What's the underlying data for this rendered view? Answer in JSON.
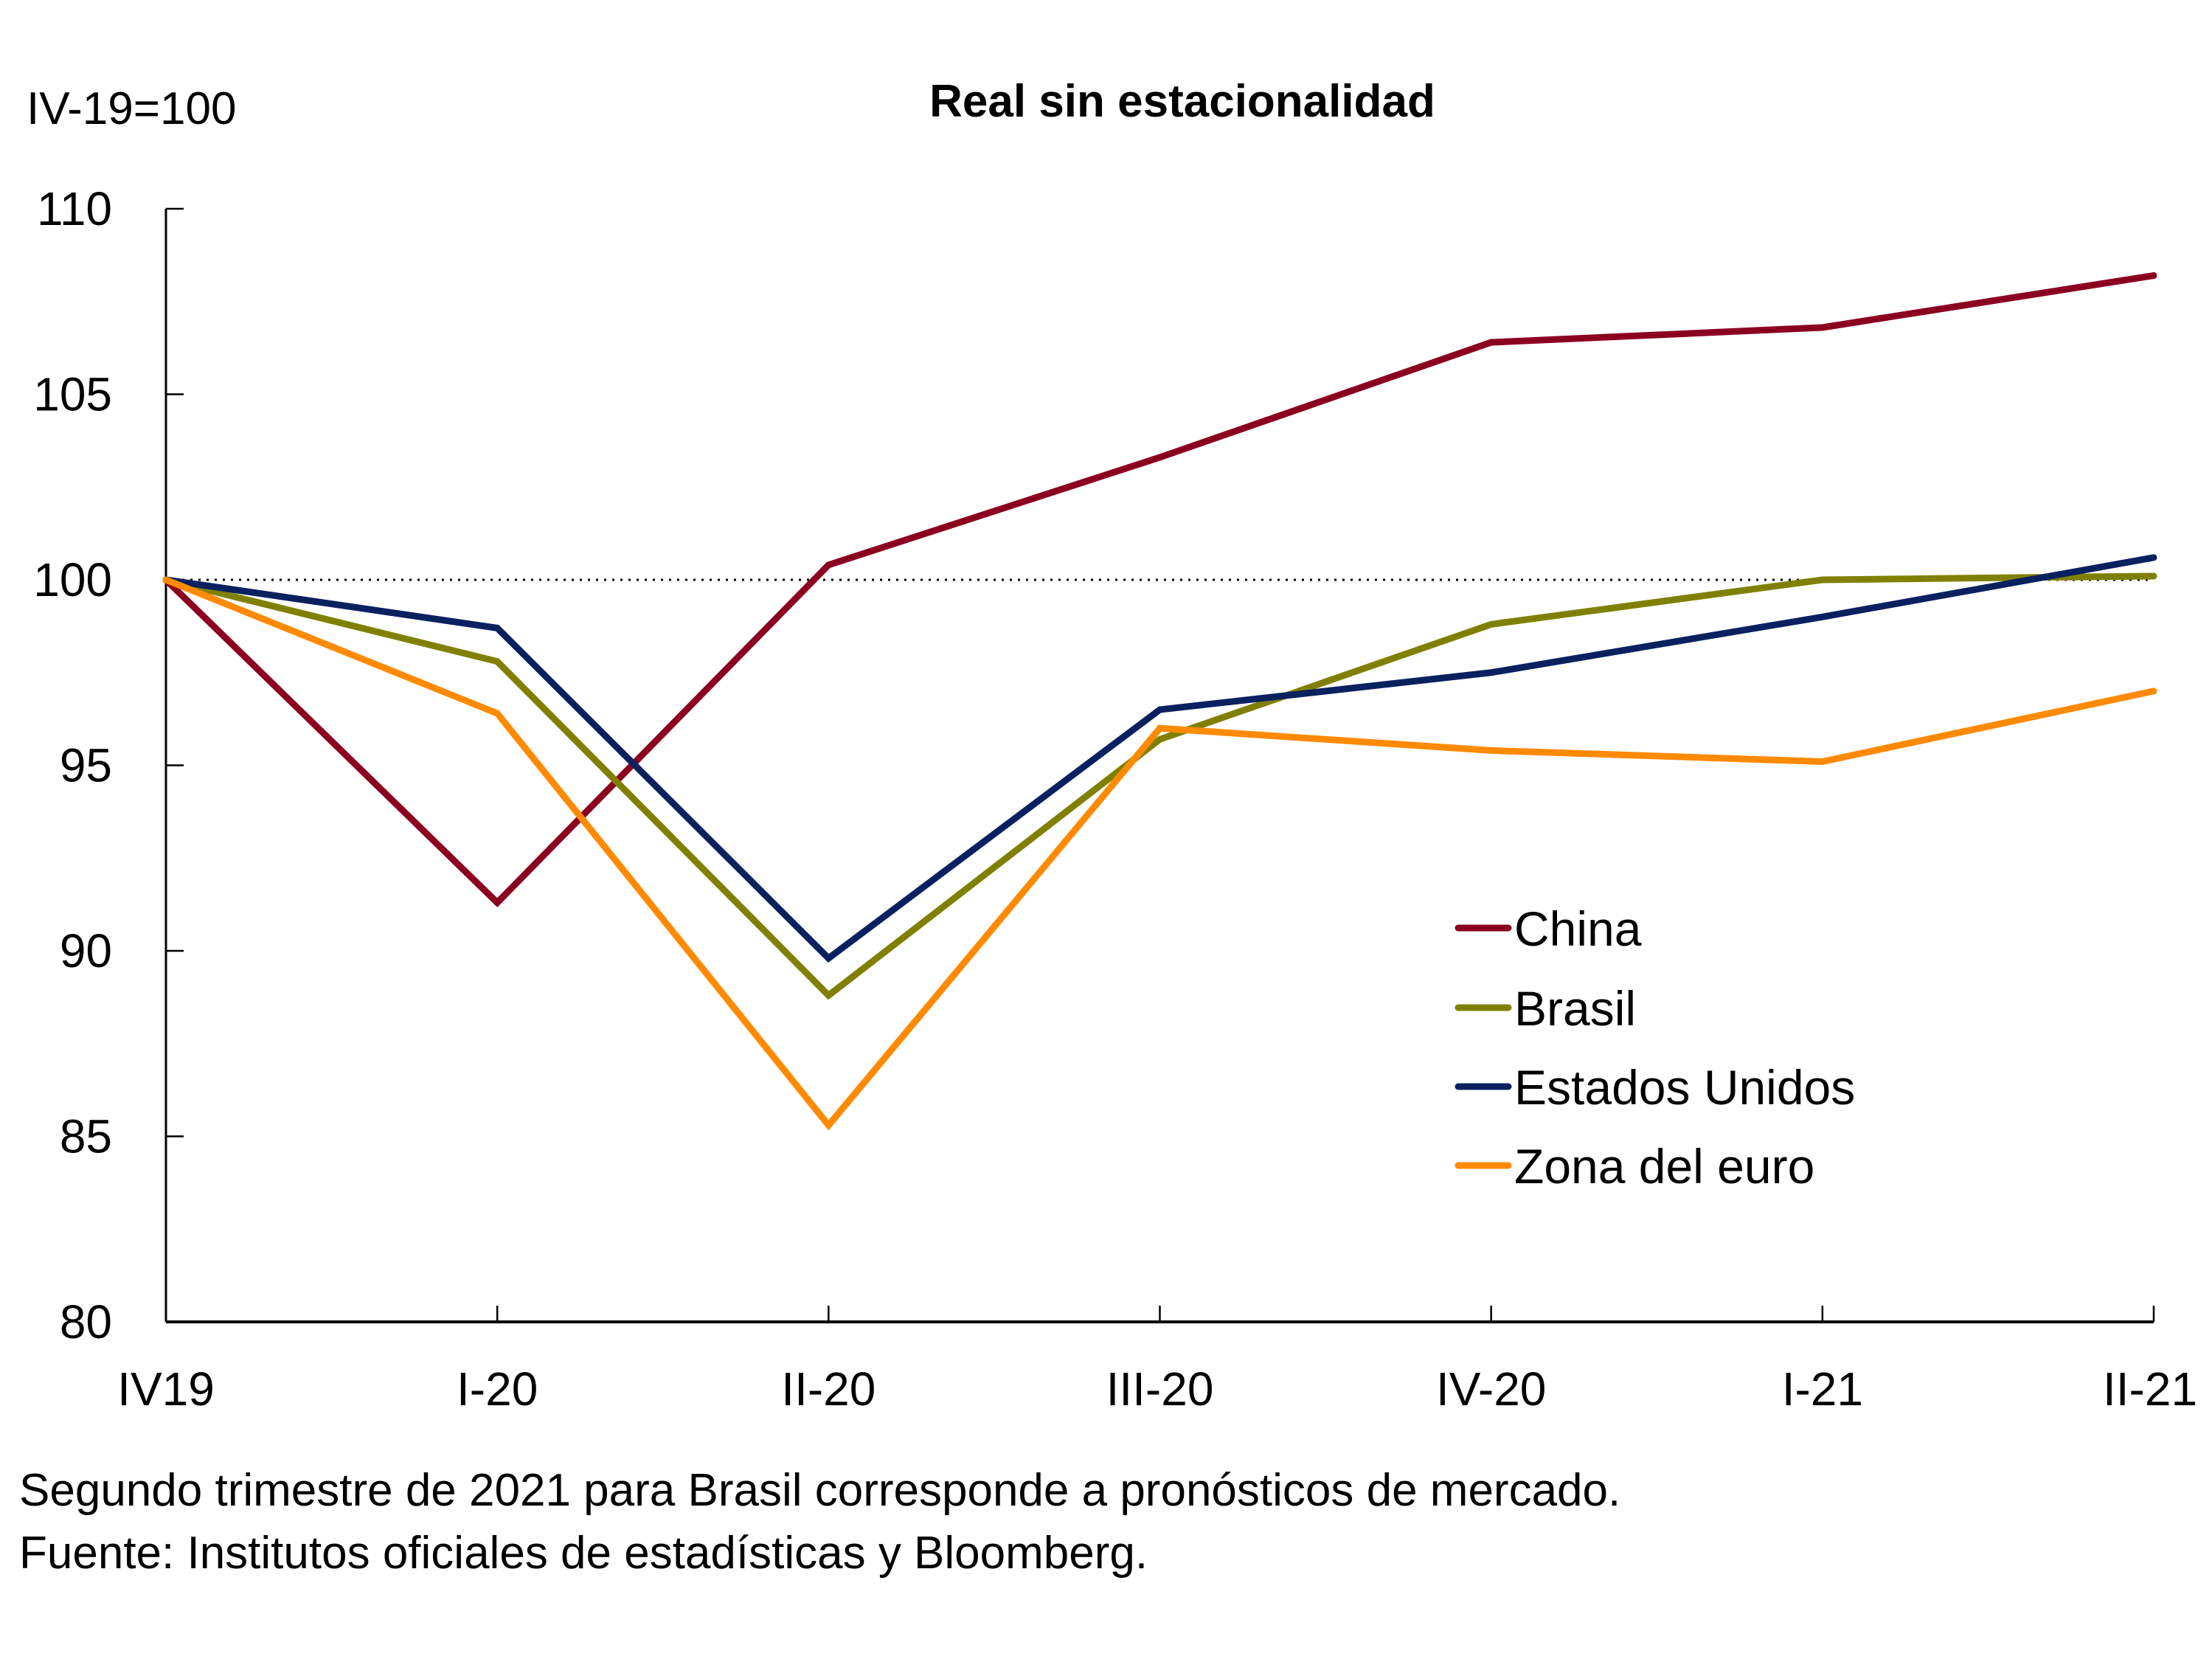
{
  "chart_data": {
    "type": "line",
    "title": "Real sin estacionalidad",
    "ylabel": "IV-19=100",
    "xlabel": "",
    "categories": [
      "IV19",
      "I-20",
      "II-20",
      "III-20",
      "IV-20",
      "I-21",
      "II-21"
    ],
    "ylim": [
      80,
      110
    ],
    "yticks": [
      80,
      85,
      90,
      95,
      100,
      105,
      110
    ],
    "reference_line": {
      "value": 100,
      "style": "dotted",
      "color": "#000000"
    },
    "grid": false,
    "legend_position": "center-right",
    "series": [
      {
        "name": "China",
        "color": "#8B0020",
        "values": [
          100,
          91.3,
          100.4,
          103.3,
          106.4,
          106.8,
          108.2
        ]
      },
      {
        "name": "Brasil",
        "color": "#808000",
        "values": [
          100,
          97.8,
          88.8,
          95.7,
          98.8,
          100.0,
          100.1
        ]
      },
      {
        "name": "Estados Unidos",
        "color": "#0A2160",
        "values": [
          100,
          98.7,
          89.8,
          96.5,
          97.5,
          99.0,
          100.6
        ]
      },
      {
        "name": "Zona del euro",
        "color": "#FF8A00",
        "values": [
          100,
          96.4,
          85.3,
          96.0,
          95.4,
          95.1,
          97.0
        ]
      }
    ]
  },
  "footer": {
    "note": "Segundo trimestre de 2021 para Brasil corresponde a pronósticos de mercado.",
    "source": "Fuente: Institutos oficiales de estadísticas y Bloomberg."
  }
}
